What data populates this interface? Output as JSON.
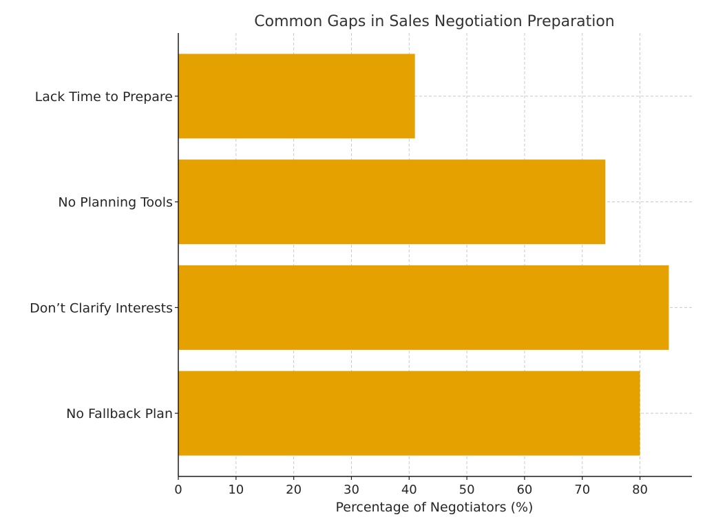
{
  "chart_data": {
    "type": "bar",
    "orientation": "horizontal",
    "title": "Common Gaps in Sales Negotiation Preparation",
    "xlabel": "Percentage of Negotiators (%)",
    "ylabel": "",
    "categories": [
      "Lack Time to Prepare",
      "No Planning Tools",
      "Don’t Clarify Interests",
      "No Fallback Plan"
    ],
    "values": [
      41,
      74,
      85,
      80
    ],
    "xlim": [
      0,
      89
    ],
    "xticks": [
      "0",
      "10",
      "20",
      "30",
      "40",
      "50",
      "60",
      "70",
      "80"
    ],
    "grid": true,
    "bar_color": "#E5A100"
  }
}
